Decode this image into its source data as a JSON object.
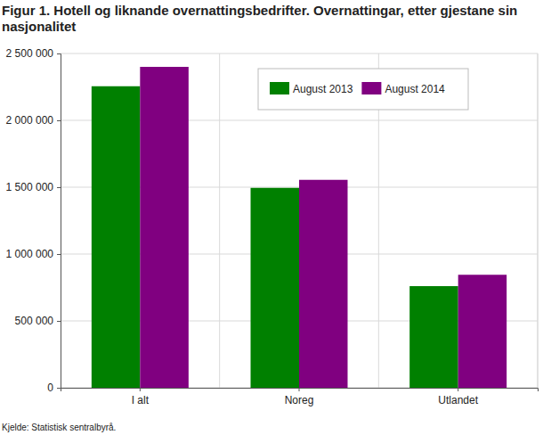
{
  "chart_data": {
    "type": "bar",
    "title": "Figur 1. Hotell og liknande overnattingsbedrifter. Overnattingar, etter gjestane sin nasjonalitet",
    "source": "Kjelde: Statistisk sentralbyrå.",
    "categories": [
      "I alt",
      "Noreg",
      "Utlandet"
    ],
    "series": [
      {
        "name": "August 2013",
        "color": "#008000",
        "values": [
          2255000,
          1495000,
          760000
        ]
      },
      {
        "name": "August 2014",
        "color": "#800080",
        "values": [
          2400000,
          1555000,
          845000
        ]
      }
    ],
    "ylim": [
      0,
      2500000
    ],
    "yticks": [
      0,
      {
        "value": 500000,
        "label": "500 000"
      },
      {
        "value": 1000000,
        "label": "1 000 000"
      },
      {
        "value": 1500000,
        "label": "1 500 000"
      },
      {
        "value": 2000000,
        "label": "2 000 000"
      },
      {
        "value": 2500000,
        "label": "2 500 000"
      }
    ],
    "grid": true,
    "legend": "top"
  }
}
